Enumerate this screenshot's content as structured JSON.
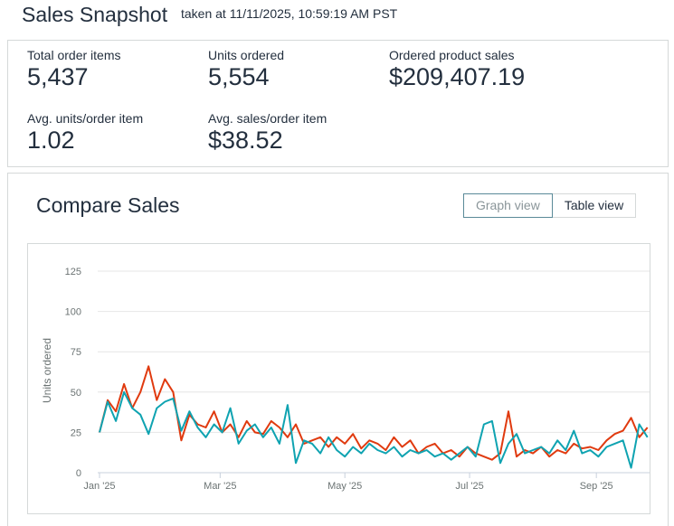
{
  "header": {
    "title": "Sales Snapshot",
    "taken_at": "taken at 11/11/2025, 10:59:19 AM PST"
  },
  "metrics": [
    {
      "label": "Total order items",
      "value": "5,437"
    },
    {
      "label": "Units ordered",
      "value": "5,554"
    },
    {
      "label": "Ordered product sales",
      "value": "$209,407.19"
    },
    {
      "label": "Avg. units/order item",
      "value": "1.02"
    },
    {
      "label": "Avg. sales/order item",
      "value": "$38.52"
    }
  ],
  "compare": {
    "title": "Compare Sales",
    "graph_view": "Graph view",
    "table_view": "Table view",
    "active_view": "graph"
  },
  "chart_data": {
    "type": "line",
    "ylabel": "Units ordered",
    "xlabel": "",
    "ylim": [
      0,
      125
    ],
    "yticks": [
      "0",
      "25",
      "50",
      "75",
      "100",
      "125"
    ],
    "xticks": [
      {
        "label": "Jan '25",
        "date": "2025-01-01"
      },
      {
        "label": "Mar '25",
        "date": "2025-03-01"
      },
      {
        "label": "May '25",
        "date": "2025-05-01"
      },
      {
        "label": "Jul '25",
        "date": "2025-07-01"
      },
      {
        "label": "Sep '25",
        "date": "2025-09-01"
      }
    ],
    "x_start": "2025-01-01",
    "x_step_days": 4,
    "grid": true,
    "series": [
      {
        "color": "#e03a0f",
        "values": [
          25,
          45,
          38,
          55,
          40,
          50,
          66,
          45,
          58,
          50,
          20,
          36,
          30,
          28,
          38,
          25,
          30,
          22,
          32,
          25,
          24,
          32,
          28,
          22,
          30,
          18,
          20,
          22,
          16,
          22,
          18,
          24,
          15,
          20,
          18,
          14,
          22,
          16,
          20,
          12,
          16,
          18,
          12,
          14,
          10,
          16,
          12,
          10,
          8,
          12,
          38,
          10,
          14,
          12,
          16,
          10,
          14,
          12,
          18,
          15,
          16,
          14,
          20,
          24,
          26,
          34,
          22,
          28
        ]
      },
      {
        "color": "#0fa3b1",
        "values": [
          25,
          44,
          32,
          50,
          40,
          36,
          24,
          40,
          44,
          46,
          26,
          38,
          28,
          22,
          30,
          25,
          40,
          18,
          26,
          30,
          22,
          28,
          18,
          42,
          6,
          20,
          18,
          12,
          22,
          14,
          10,
          16,
          12,
          18,
          14,
          12,
          16,
          10,
          14,
          12,
          14,
          10,
          12,
          8,
          12,
          16,
          10,
          30,
          32,
          6,
          18,
          24,
          12,
          14,
          16,
          12,
          20,
          14,
          26,
          12,
          14,
          10,
          16,
          18,
          20,
          3,
          30,
          22
        ]
      }
    ]
  }
}
